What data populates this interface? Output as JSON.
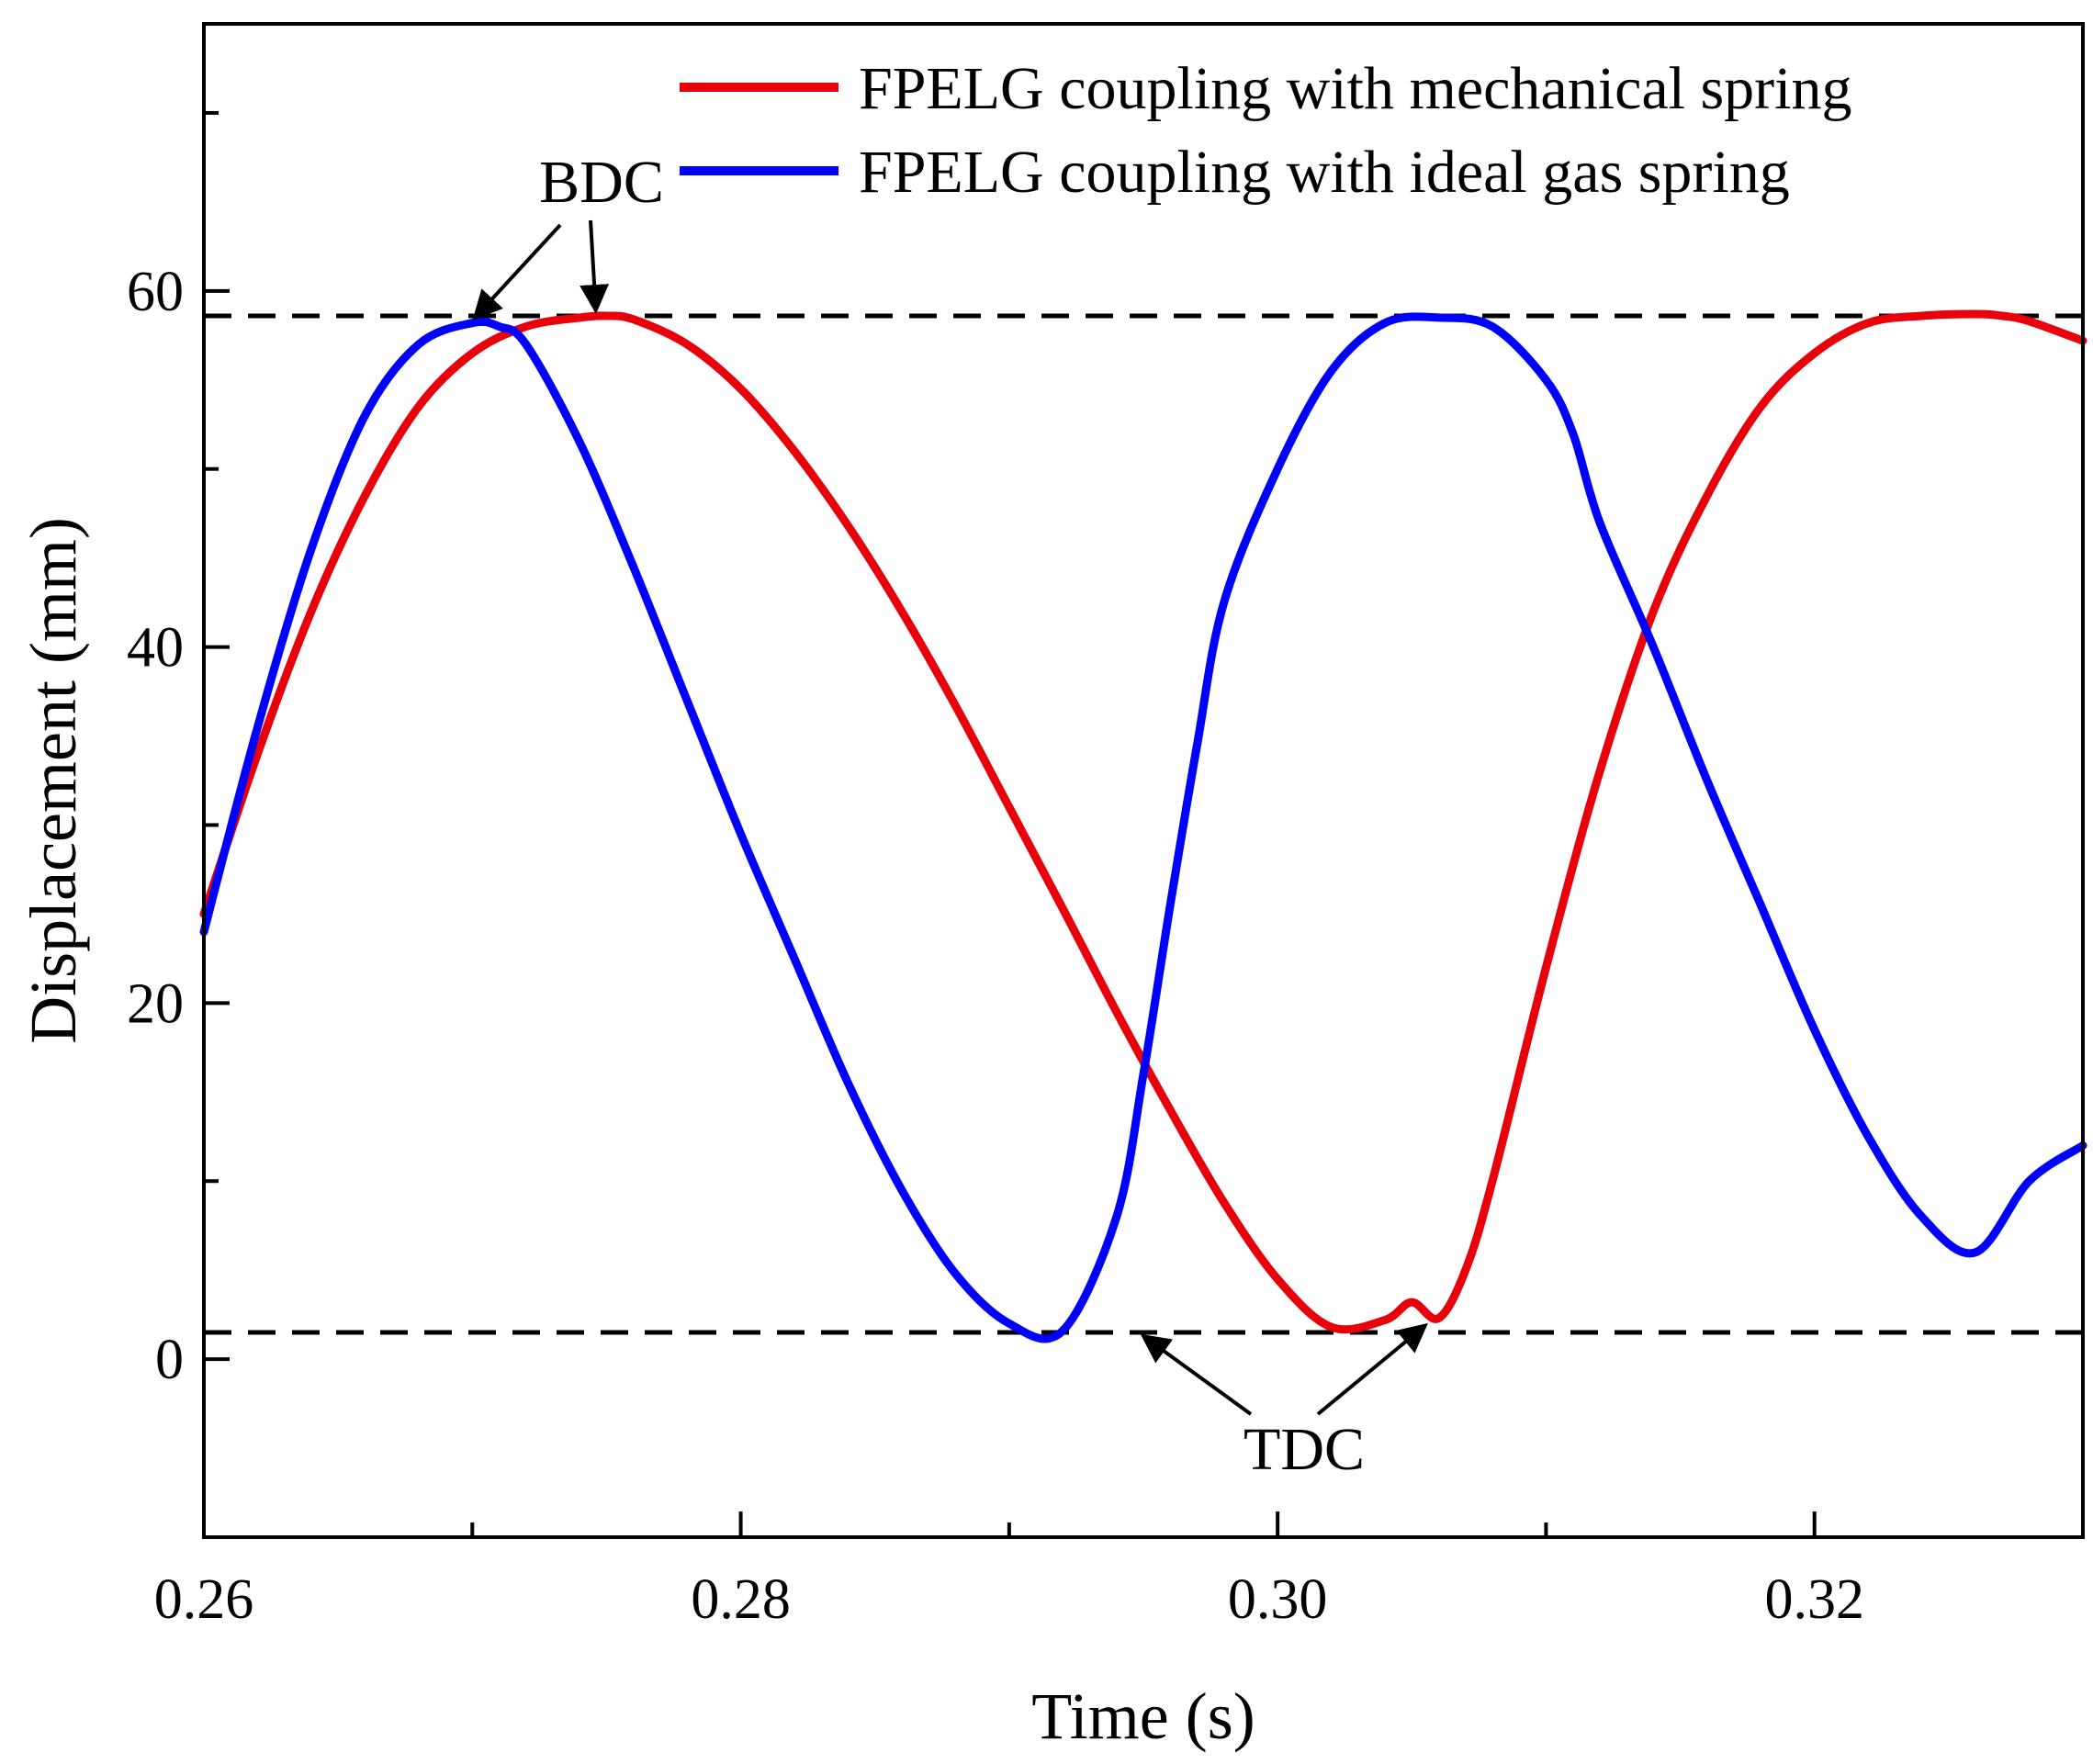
{
  "chart_data": {
    "type": "line",
    "xlabel": "Time (s)",
    "ylabel": "Displacement (mm)",
    "xlim": [
      0.26,
      0.33
    ],
    "ylim": [
      -10,
      75
    ],
    "x_major_ticks": [
      0.26,
      0.28,
      0.3,
      0.32
    ],
    "x_tick_labels": [
      "0.26",
      "0.28",
      "0.30",
      "0.32"
    ],
    "x_minor_ticks": [
      0.27,
      0.29,
      0.31
    ],
    "y_major_ticks": [
      0,
      20,
      40,
      60
    ],
    "y_tick_labels": [
      "0",
      "20",
      "40",
      "60"
    ],
    "y_minor_ticks": [
      10,
      30,
      50,
      70
    ],
    "legend_position": "top-right",
    "series": [
      {
        "name": "FPELG coupling with  mechanical spring",
        "color": "#e8000b",
        "x": [
          0.26,
          0.262,
          0.264,
          0.266,
          0.268,
          0.27,
          0.272,
          0.274,
          0.275,
          0.276,
          0.278,
          0.28,
          0.282,
          0.284,
          0.286,
          0.288,
          0.29,
          0.292,
          0.294,
          0.296,
          0.298,
          0.3,
          0.302,
          0.304,
          0.305,
          0.306,
          0.307,
          0.308,
          0.31,
          0.312,
          0.314,
          0.316,
          0.318,
          0.32,
          0.322,
          0.324,
          0.326,
          0.327,
          0.328,
          0.33
        ],
        "y": [
          25,
          34,
          42,
          48.5,
          53.5,
          56.5,
          58,
          58.5,
          58.6,
          58.4,
          57,
          54.5,
          51,
          46.8,
          42,
          36.7,
          31,
          25.3,
          19.5,
          14,
          8.8,
          4.5,
          1.8,
          2.2,
          3.2,
          2.3,
          5,
          10,
          22,
          33,
          42,
          48.5,
          53.5,
          56.5,
          58.2,
          58.6,
          58.7,
          58.6,
          58.3,
          57.2
        ]
      },
      {
        "name": "FPELG coupling with  ideal gas spring",
        "color": "#0000ff",
        "x": [
          0.26,
          0.262,
          0.264,
          0.266,
          0.268,
          0.27,
          0.271,
          0.272,
          0.274,
          0.276,
          0.278,
          0.28,
          0.282,
          0.284,
          0.286,
          0.288,
          0.29,
          0.292,
          0.294,
          0.295,
          0.296,
          0.297,
          0.298,
          0.3,
          0.302,
          0.304,
          0.306,
          0.308,
          0.31,
          0.311,
          0.312,
          0.314,
          0.316,
          0.318,
          0.32,
          0.322,
          0.324,
          0.326,
          0.328,
          0.33
        ],
        "y": [
          24,
          35.5,
          45.5,
          53,
          57,
          58.2,
          58,
          57,
          51.5,
          44.5,
          37,
          29.5,
          22.5,
          15.5,
          9.5,
          4.8,
          2,
          1.6,
          8,
          16,
          25.5,
          34.5,
          42.5,
          50,
          55.5,
          58.2,
          58.5,
          58,
          55,
          52,
          47,
          40,
          32.5,
          25.5,
          18.5,
          12.5,
          8,
          6,
          10,
          12
        ]
      }
    ],
    "reference_lines": [
      {
        "name": "BDC level",
        "y": 58.6,
        "style": "dashed"
      },
      {
        "name": "TDC level",
        "y": 1.5,
        "style": "dashed"
      }
    ],
    "annotations": [
      {
        "text": "BDC",
        "arrow_targets": [
          [
            0.2701,
            58.2
          ],
          [
            0.2746,
            58.6
          ]
        ]
      },
      {
        "text": "TDC",
        "arrow_targets": [
          [
            0.295,
            1.6
          ],
          [
            0.3055,
            2.2
          ]
        ]
      }
    ]
  }
}
